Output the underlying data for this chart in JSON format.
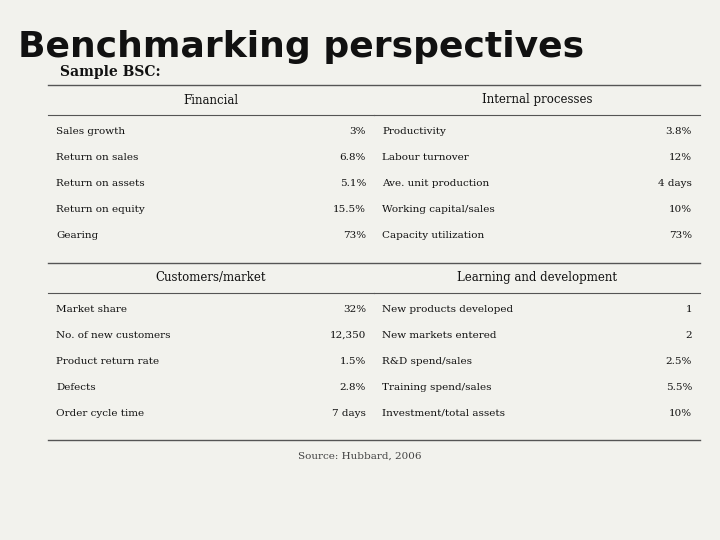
{
  "title": "Benchmarking perspectives",
  "subtitle": "Sample BSC:",
  "source": "Source: Hubbard, 2006",
  "background_color": "#f2f2ed",
  "sections": [
    {
      "header": "Financial",
      "col": 0,
      "row": 0,
      "items": [
        [
          "Sales growth",
          "3%"
        ],
        [
          "Return on sales",
          "6.8%"
        ],
        [
          "Return on assets",
          "5.1%"
        ],
        [
          "Return on equity",
          "15.5%"
        ],
        [
          "Gearing",
          "73%"
        ]
      ]
    },
    {
      "header": "Internal processes",
      "col": 1,
      "row": 0,
      "items": [
        [
          "Productivity",
          "3.8%"
        ],
        [
          "Labour turnover",
          "12%"
        ],
        [
          "Ave. unit production",
          "4 days"
        ],
        [
          "Working capital/sales",
          "10%"
        ],
        [
          "Capacity utilization",
          "73%"
        ]
      ]
    },
    {
      "header": "Customers/market",
      "col": 0,
      "row": 1,
      "items": [
        [
          "Market share",
          "32%"
        ],
        [
          "No. of new customers",
          "12,350"
        ],
        [
          "Product return rate",
          "1.5%"
        ],
        [
          "Defects",
          "2.8%"
        ],
        [
          "Order cycle time",
          "7 days"
        ]
      ]
    },
    {
      "header": "Learning and development",
      "col": 1,
      "row": 1,
      "items": [
        [
          "New products developed",
          "1"
        ],
        [
          "New markets entered",
          "2"
        ],
        [
          "R&D spend/sales",
          "2.5%"
        ],
        [
          "Training spend/sales",
          "5.5%"
        ],
        [
          "Investment/total assets",
          "10%"
        ]
      ]
    }
  ]
}
